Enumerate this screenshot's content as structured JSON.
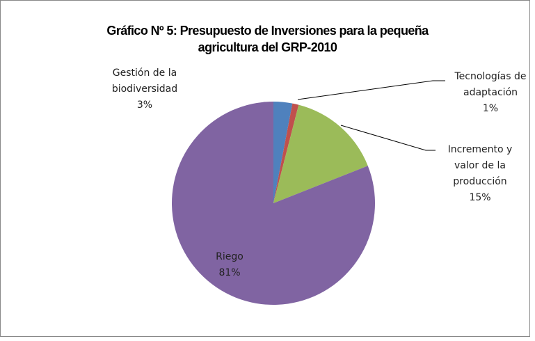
{
  "chart_data": {
    "type": "pie",
    "title": [
      "Gráfico Nº 5: Presupuesto de Inversiones para la pequeña",
      "agricultura del GRP-2010"
    ],
    "categories": [
      "Gestión de la biodiversidad",
      "Tecnologías de adaptación",
      "Incremento y valor de la producción",
      "Riego"
    ],
    "values": [
      3,
      1,
      15,
      81
    ],
    "value_labels": [
      "3%",
      "1%",
      "15%",
      "81%"
    ],
    "colors": [
      "#4f81bd",
      "#c0504d",
      "#9bbb59",
      "#8064a2"
    ]
  }
}
